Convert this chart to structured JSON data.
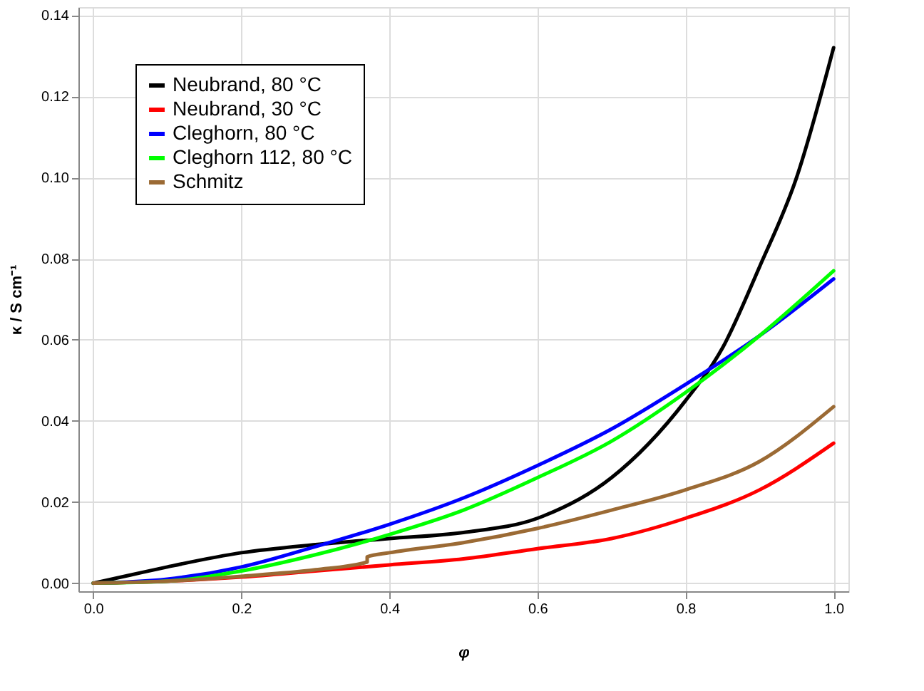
{
  "chart_data": {
    "type": "line",
    "xlabel": "φ",
    "ylabel": "κ / S cm⁻¹",
    "xlim": [
      -0.02,
      1.02
    ],
    "ylim": [
      -0.002,
      0.142
    ],
    "xticks": [
      {
        "value": 0,
        "label": "0.0"
      },
      0.2,
      0.4,
      0.6,
      0.8,
      {
        "value": 1,
        "label": "1.0"
      }
    ],
    "yticks": [
      {
        "value": 0,
        "label": "0.00"
      },
      0.02,
      0.04,
      0.06,
      0.08,
      {
        "value": 0.1,
        "label": "0.10"
      },
      0.12,
      0.14
    ],
    "grid": true,
    "legend": "top left",
    "line_style": "solid",
    "marker": "none",
    "series": [
      {
        "name": "Neubrand, 80 °C",
        "color": "#000000",
        "x": [
          0,
          0.05,
          0.1,
          0.2,
          0.3,
          0.4,
          0.5,
          0.6,
          0.7,
          0.8,
          0.85,
          0.9,
          0.95,
          1.0
        ],
        "values": [
          0,
          0.002,
          0.004,
          0.0075,
          0.0095,
          0.011,
          0.0125,
          0.016,
          0.026,
          0.045,
          0.058,
          0.078,
          0.1,
          0.132
        ]
      },
      {
        "name": "Neubrand, 30 °C",
        "color": "#ff0000",
        "x": [
          0,
          0.1,
          0.2,
          0.3,
          0.4,
          0.5,
          0.6,
          0.7,
          0.8,
          0.9,
          1.0
        ],
        "values": [
          0,
          0.0005,
          0.0015,
          0.003,
          0.0045,
          0.006,
          0.0085,
          0.011,
          0.016,
          0.023,
          0.0345
        ]
      },
      {
        "name": "Cleghorn, 80 °C",
        "color": "#0000ff",
        "x": [
          0,
          0.1,
          0.2,
          0.3,
          0.4,
          0.5,
          0.6,
          0.7,
          0.8,
          0.9,
          1.0
        ],
        "values": [
          0,
          0.001,
          0.004,
          0.009,
          0.0145,
          0.021,
          0.029,
          0.038,
          0.049,
          0.061,
          0.075
        ]
      },
      {
        "name": "Cleghorn 112, 80 °C",
        "color": "#00ff00",
        "x": [
          0,
          0.1,
          0.2,
          0.3,
          0.4,
          0.5,
          0.6,
          0.7,
          0.8,
          0.9,
          1.0
        ],
        "values": [
          0,
          0.0005,
          0.003,
          0.007,
          0.012,
          0.018,
          0.026,
          0.035,
          0.047,
          0.061,
          0.077
        ]
      },
      {
        "name": "Schmitz",
        "color": "#9b6a34",
        "x": [
          0,
          0.1,
          0.2,
          0.3,
          0.37,
          0.37,
          0.4,
          0.5,
          0.6,
          0.7,
          0.8,
          0.9,
          1.0
        ],
        "values": [
          0,
          0.0005,
          0.0017,
          0.0033,
          0.0052,
          0.0065,
          0.0075,
          0.01,
          0.0135,
          0.018,
          0.023,
          0.03,
          0.0435
        ]
      }
    ]
  }
}
